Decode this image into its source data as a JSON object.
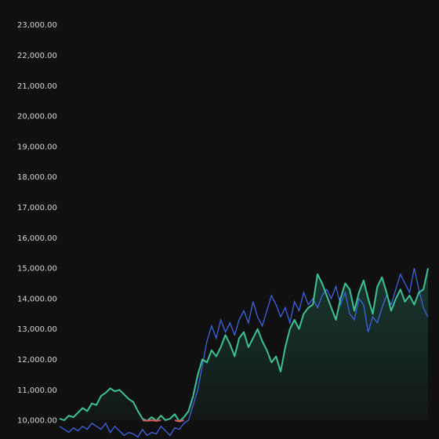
{
  "chart_data": {
    "type": "area",
    "title": "",
    "xlabel": "",
    "ylabel": "",
    "ylim": [
      9950,
      23250
    ],
    "yticks": [
      "10,000.00",
      "11,000.00",
      "12,000.00",
      "13,000.00",
      "14,000.00",
      "15,000.00",
      "16,000.00",
      "17,000.00",
      "18,000.00",
      "19,000.00",
      "20,000.00",
      "21,000.00",
      "22,000.00",
      "23,000.00"
    ],
    "baseline": 10000,
    "grid": false,
    "legend": "none",
    "colors": {
      "background": "#101011",
      "primary_line": "#3cc394",
      "primary_fill_top": "#1f5a48",
      "below_baseline": "#e05563",
      "secondary_line": "#3e63e0"
    },
    "x": [
      0,
      1,
      2,
      3,
      4,
      5,
      6,
      7,
      8,
      9,
      10,
      11,
      12,
      13,
      14,
      15,
      16,
      17,
      18,
      19,
      20,
      21,
      22,
      23,
      24,
      25,
      26,
      27,
      28,
      29,
      30,
      31,
      32,
      33,
      34,
      35,
      36,
      37,
      38,
      39,
      40,
      41,
      42,
      43,
      44,
      45,
      46,
      47,
      48,
      49,
      50,
      51,
      52,
      53,
      54,
      55,
      56,
      57,
      58,
      59,
      60,
      61,
      62,
      63,
      64,
      65,
      66,
      67,
      68,
      69,
      70,
      71,
      72,
      73,
      74,
      75,
      76,
      77,
      78,
      79,
      80
    ],
    "series": [
      {
        "values": [
          10050,
          10000,
          10150,
          10100,
          10250,
          10400,
          10300,
          10550,
          10500,
          10800,
          10900,
          11050,
          10950,
          11000,
          10850,
          10700,
          10600,
          10300,
          10050,
          9980,
          10100,
          9980,
          10150,
          10000,
          10050,
          10200,
          9960,
          10100,
          10300,
          10800,
          11500,
          12000,
          11900,
          12300,
          12100,
          12400,
          12800,
          12500,
          12100,
          12700,
          12900,
          12400,
          12700,
          13000,
          12600,
          12300,
          11900,
          12100,
          11600,
          12400,
          13000,
          13300,
          13000,
          13500,
          13700,
          13800,
          14800,
          14500,
          14100,
          13700,
          13300,
          14000,
          14500,
          14300,
          13600,
          14200,
          14600,
          14000,
          13500,
          14400,
          14700,
          14200,
          13600,
          14000,
          14300,
          13900,
          14100,
          13800,
          14200,
          14300,
          15000
        ]
      },
      {
        "values": [
          9800,
          9700,
          9600,
          9750,
          9650,
          9800,
          9700,
          9900,
          9800,
          9700,
          9900,
          9600,
          9800,
          9650,
          9500,
          9600,
          9550,
          9450,
          9700,
          9500,
          9600,
          9550,
          9800,
          9650,
          9500,
          9750,
          9700,
          9900,
          10000,
          10500,
          11000,
          11800,
          12600,
          13100,
          12700,
          13300,
          12900,
          13200,
          12800,
          13300,
          13600,
          13200,
          13900,
          13400,
          13100,
          13600,
          14100,
          13800,
          13400,
          13700,
          13200,
          13900,
          13600,
          14200,
          13800,
          14000,
          13700,
          14100,
          14300,
          14000,
          14400,
          13800,
          14200,
          13500,
          13300,
          14000,
          13800,
          12900,
          13400,
          13200,
          13700,
          14100,
          13800,
          14300,
          14800,
          14500,
          14200,
          15000,
          14300,
          13700,
          13400
        ]
      }
    ]
  }
}
